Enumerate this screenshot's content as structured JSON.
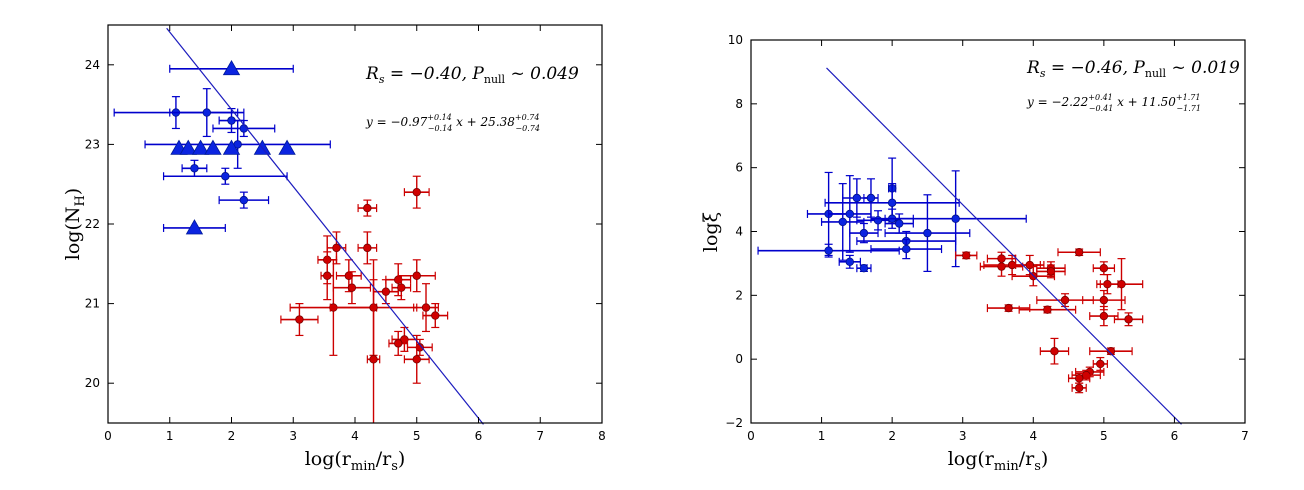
{
  "colors": {
    "blue_marker": "#0b24e0",
    "blue_error": "#0000cc",
    "red_marker": "#d00000",
    "red_error": "#cc0000",
    "fit_line": "#1c1cbe"
  },
  "chart_data": [
    {
      "type": "scatter",
      "title": "",
      "xlabel": "log(r_min/r_s)",
      "ylabel": "log(N_H)",
      "xlim": [
        0,
        8
      ],
      "ylim": [
        19.5,
        24.5
      ],
      "xticks": [
        "0",
        "1",
        "2",
        "3",
        "4",
        "5",
        "6",
        "7",
        "8"
      ],
      "yticks": [
        "20",
        "21",
        "22",
        "23",
        "24"
      ],
      "annotation_line1": "R_s = −0.40,  P_null ~ 0.049",
      "annotation_line2": "y = −0.97 (+0.14 −0.14) x + 25.38 (+0.74 −0.74)",
      "fit": {
        "slope": -0.97,
        "intercept": 25.38,
        "x_range": [
          0.95,
          6.08
        ]
      },
      "series": [
        {
          "color": "blue",
          "points": [
            {
              "x": 1.1,
              "y": 23.4,
              "xerr": 1.0,
              "yerr": 0.2
            },
            {
              "x": 1.6,
              "y": 23.4,
              "xerr": 0.6,
              "yerr": 0.3
            },
            {
              "x": 2.2,
              "y": 23.2,
              "xerr": 0.5,
              "yerr": 0.1
            },
            {
              "x": 2.0,
              "y": 23.3,
              "xerr": 0.2,
              "yerr": 0.15
            },
            {
              "x": 2.1,
              "y": 23.0,
              "xerr": 1.5,
              "yerr": 0.3
            },
            {
              "x": 1.4,
              "y": 22.7,
              "xerr": 0.2,
              "yerr": 0.1
            },
            {
              "x": 1.9,
              "y": 22.6,
              "xerr": 1.0,
              "yerr": 0.1
            },
            {
              "x": 2.2,
              "y": 22.3,
              "xerr": 0.4,
              "yerr": 0.1
            }
          ]
        },
        {
          "color": "blue-limits",
          "points": [
            {
              "x": 2.0,
              "y": 23.95,
              "xerr": 1.0
            },
            {
              "x": 1.15,
              "y": 22.95,
              "xerr": 0.0
            },
            {
              "x": 1.3,
              "y": 22.95,
              "xerr": 0.0
            },
            {
              "x": 1.5,
              "y": 22.95,
              "xerr": 0.0
            },
            {
              "x": 1.7,
              "y": 22.95,
              "xerr": 0.0
            },
            {
              "x": 2.0,
              "y": 22.95,
              "xerr": 0.0
            },
            {
              "x": 2.5,
              "y": 22.95,
              "xerr": 0.0
            },
            {
              "x": 2.9,
              "y": 22.95,
              "xerr": 0.0
            },
            {
              "x": 1.4,
              "y": 21.95,
              "xerr": 0.5
            }
          ]
        },
        {
          "color": "red",
          "points": [
            {
              "x": 4.2,
              "y": 22.2,
              "xerr": 0.15,
              "yerr": 0.1
            },
            {
              "x": 5.0,
              "y": 22.4,
              "xerr": 0.2,
              "yerr": 0.2
            },
            {
              "x": 3.7,
              "y": 21.7,
              "xerr": 0.15,
              "yerr": 0.2
            },
            {
              "x": 4.2,
              "y": 21.7,
              "xerr": 0.15,
              "yerr": 0.2
            },
            {
              "x": 3.55,
              "y": 21.55,
              "xerr": 0.15,
              "yerr": 0.3
            },
            {
              "x": 3.55,
              "y": 21.35,
              "xerr": 0.1,
              "yerr": 0.3
            },
            {
              "x": 3.9,
              "y": 21.35,
              "xerr": 0.2,
              "yerr": 0.2
            },
            {
              "x": 5.0,
              "y": 21.35,
              "xerr": 0.3,
              "yerr": 0.2
            },
            {
              "x": 4.7,
              "y": 21.3,
              "xerr": 0.2,
              "yerr": 0.2
            },
            {
              "x": 3.95,
              "y": 21.2,
              "xerr": 0.3,
              "yerr": 0.2
            },
            {
              "x": 4.5,
              "y": 21.15,
              "xerr": 0.2,
              "yerr": 0.15
            },
            {
              "x": 4.75,
              "y": 21.2,
              "xerr": 0.15,
              "yerr": 0.15
            },
            {
              "x": 3.1,
              "y": 20.8,
              "xerr": 0.3,
              "yerr": 0.2
            },
            {
              "x": 3.65,
              "y": 20.95,
              "xerr": 0.7,
              "yerr": 0.6
            },
            {
              "x": 4.3,
              "y": 20.95,
              "xerr": 0.7,
              "yerr": 0.6
            },
            {
              "x": 5.15,
              "y": 20.95,
              "xerr": 0.2,
              "yerr": 0.3
            },
            {
              "x": 5.3,
              "y": 20.85,
              "xerr": 0.2,
              "yerr": 0.15
            },
            {
              "x": 4.8,
              "y": 20.55,
              "xerr": 0.2,
              "yerr": 0.15
            },
            {
              "x": 4.7,
              "y": 20.5,
              "xerr": 0.15,
              "yerr": 0.15
            },
            {
              "x": 5.05,
              "y": 20.45,
              "xerr": 0.2,
              "yerr": 0.1
            },
            {
              "x": 4.3,
              "y": 20.3,
              "xerr": 0.1,
              "yerr": 1.0
            },
            {
              "x": 5.0,
              "y": 20.3,
              "xerr": 0.2,
              "yerr": 0.3
            }
          ]
        }
      ]
    },
    {
      "type": "scatter",
      "title": "",
      "xlabel": "log(r_min/r_s)",
      "ylabel": "logξ",
      "xlim": [
        0,
        7
      ],
      "ylim": [
        -2,
        10
      ],
      "xticks": [
        "0",
        "1",
        "2",
        "3",
        "4",
        "5",
        "6",
        "7"
      ],
      "yticks": [
        "−2",
        "0",
        "2",
        "4",
        "6",
        "8",
        "10"
      ],
      "annotation_line1": "R_s = −0.46,  P_null ~ 0.019",
      "annotation_line2": "y = −2.22 (+0.41 −0.41) x + 11.50 (+1.71 −1.71)",
      "fit": {
        "slope": -2.22,
        "intercept": 11.5,
        "x_range": [
          1.07,
          6.1
        ]
      },
      "series": [
        {
          "color": "blue",
          "points": [
            {
              "x": 1.1,
              "y": 4.55,
              "xerr": 0.3,
              "yerr": 1.3
            },
            {
              "x": 1.3,
              "y": 4.3,
              "xerr": 0.3,
              "yerr": 1.2
            },
            {
              "x": 1.4,
              "y": 4.55,
              "xerr": 0.3,
              "yerr": 1.2
            },
            {
              "x": 1.5,
              "y": 5.05,
              "xerr": 0.2,
              "yerr": 0.6
            },
            {
              "x": 1.7,
              "y": 5.05,
              "xerr": 0.1,
              "yerr": 0.6
            },
            {
              "x": 2.0,
              "y": 5.35,
              "xerr": 0.05,
              "yerr": 0.95
            },
            {
              "x": 2.0,
              "y": 4.9,
              "xerr": 0.95,
              "yerr": 0.6
            },
            {
              "x": 1.8,
              "y": 4.35,
              "xerr": 0.3,
              "yerr": 0.3
            },
            {
              "x": 2.0,
              "y": 4.4,
              "xerr": 0.3,
              "yerr": 0.3
            },
            {
              "x": 2.1,
              "y": 4.25,
              "xerr": 0.2,
              "yerr": 0.3
            },
            {
              "x": 2.9,
              "y": 4.4,
              "xerr": 1.0,
              "yerr": 1.5
            },
            {
              "x": 1.6,
              "y": 3.95,
              "xerr": 0.2,
              "yerr": 0.3
            },
            {
              "x": 2.5,
              "y": 3.95,
              "xerr": 0.6,
              "yerr": 1.2
            },
            {
              "x": 2.2,
              "y": 3.7,
              "xerr": 0.7,
              "yerr": 0.3
            },
            {
              "x": 2.2,
              "y": 3.45,
              "xerr": 0.5,
              "yerr": 0.3
            },
            {
              "x": 1.1,
              "y": 3.4,
              "xerr": 1.0,
              "yerr": 0.2
            },
            {
              "x": 1.4,
              "y": 3.05,
              "xerr": 0.15,
              "yerr": 0.2
            },
            {
              "x": 1.6,
              "y": 2.85,
              "xerr": 0.1,
              "yerr": 0.1
            }
          ]
        },
        {
          "color": "red",
          "points": [
            {
              "x": 3.05,
              "y": 3.25,
              "xerr": 0.15,
              "yerr": 0.1
            },
            {
              "x": 3.55,
              "y": 3.15,
              "xerr": 0.2,
              "yerr": 0.2
            },
            {
              "x": 4.65,
              "y": 3.35,
              "xerr": 0.3,
              "yerr": 0.1
            },
            {
              "x": 3.55,
              "y": 2.9,
              "xerr": 0.3,
              "yerr": 0.3
            },
            {
              "x": 3.7,
              "y": 2.95,
              "xerr": 0.4,
              "yerr": 0.3
            },
            {
              "x": 3.95,
              "y": 2.95,
              "xerr": 0.2,
              "yerr": 0.3
            },
            {
              "x": 4.25,
              "y": 2.85,
              "xerr": 0.2,
              "yerr": 0.2
            },
            {
              "x": 4.25,
              "y": 2.75,
              "xerr": 0.2,
              "yerr": 0.2
            },
            {
              "x": 4.0,
              "y": 2.6,
              "xerr": 0.3,
              "yerr": 0.3
            },
            {
              "x": 5.0,
              "y": 2.85,
              "xerr": 0.15,
              "yerr": 0.2
            },
            {
              "x": 5.05,
              "y": 2.35,
              "xerr": 0.15,
              "yerr": 0.3
            },
            {
              "x": 5.25,
              "y": 2.35,
              "xerr": 0.3,
              "yerr": 0.8
            },
            {
              "x": 4.45,
              "y": 1.85,
              "xerr": 0.4,
              "yerr": 0.2
            },
            {
              "x": 5.0,
              "y": 1.85,
              "xerr": 0.3,
              "yerr": 0.3
            },
            {
              "x": 3.65,
              "y": 1.6,
              "xerr": 0.3,
              "yerr": 0.1
            },
            {
              "x": 4.2,
              "y": 1.55,
              "xerr": 0.4,
              "yerr": 0.1
            },
            {
              "x": 5.0,
              "y": 1.35,
              "xerr": 0.2,
              "yerr": 0.3
            },
            {
              "x": 5.35,
              "y": 1.25,
              "xerr": 0.2,
              "yerr": 0.2
            },
            {
              "x": 4.3,
              "y": 0.25,
              "xerr": 0.2,
              "yerr": 0.4
            },
            {
              "x": 5.1,
              "y": 0.25,
              "xerr": 0.3,
              "yerr": 0.1
            },
            {
              "x": 4.95,
              "y": -0.15,
              "xerr": 0.1,
              "yerr": 0.2
            },
            {
              "x": 4.8,
              "y": -0.4,
              "xerr": 0.2,
              "yerr": 0.15
            },
            {
              "x": 4.75,
              "y": -0.5,
              "xerr": 0.2,
              "yerr": 0.15
            },
            {
              "x": 4.65,
              "y": -0.6,
              "xerr": 0.15,
              "yerr": 0.15
            },
            {
              "x": 4.65,
              "y": -0.9,
              "xerr": 0.1,
              "yerr": 0.15
            }
          ]
        }
      ]
    }
  ]
}
